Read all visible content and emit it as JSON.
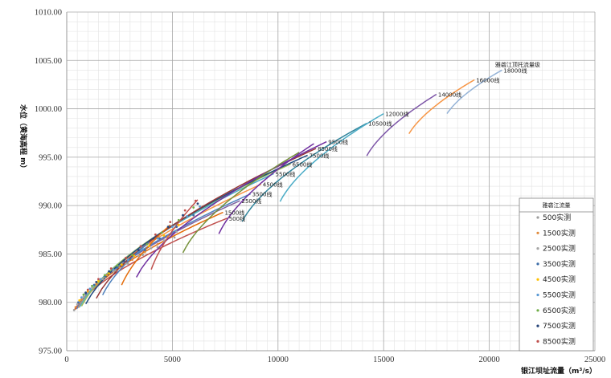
{
  "chart_data": {
    "type": "line",
    "xlabel": "银江坝址流量（m³/s）",
    "ylabel": "水位（黄海高程 m）",
    "xlim": [
      0,
      25000
    ],
    "ylim": [
      975,
      1010
    ],
    "x_ticks": [
      "0",
      "5000",
      "10000",
      "15000",
      "20000",
      "25000"
    ],
    "y_ticks": [
      "975.00",
      "980.00",
      "985.00",
      "990.00",
      "995.00",
      "1000.00",
      "1005.00",
      "1010.00"
    ],
    "grid": true,
    "legend": {
      "title": "雅砻江流量",
      "position": "right",
      "entries": [
        {
          "name": "500实测",
          "color": "#9e9e9e"
        },
        {
          "name": "1500实测",
          "color": "#e08a3c"
        },
        {
          "name": "2500实测",
          "color": "#a5a5a5"
        },
        {
          "name": "3500实测",
          "color": "#3d6da8"
        },
        {
          "name": "4500实测",
          "color": "#ffc000"
        },
        {
          "name": "5500实测",
          "color": "#5b9bd5"
        },
        {
          "name": "6500实测",
          "color": "#70ad47"
        },
        {
          "name": "7500实测",
          "color": "#264478"
        },
        {
          "name": "8500实测",
          "color": "#c0504d"
        }
      ]
    },
    "annotation": {
      "text": "雅砻江顶托流量级",
      "x": 21800,
      "y": 1004.6
    },
    "series": [
      {
        "name": "500线",
        "label": "500线",
        "color": "#c0504d",
        "x_start": 350,
        "x_end": 7600,
        "y_end": 988.7
      },
      {
        "name": "1500线",
        "label": "1500线",
        "color": "#e46c0a",
        "x_start": 400,
        "x_end": 7400,
        "y_end": 989.3
      },
      {
        "name": "2500线",
        "label": "2500线",
        "color": "#8064a2",
        "x_start": 450,
        "x_end": 8200,
        "y_end": 990.5
      },
      {
        "name": "3500线",
        "label": "3500线",
        "color": "#4f81bd",
        "x_start": 500,
        "x_end": 8700,
        "y_end": 991.2
      },
      {
        "name": "4500线",
        "label": "4500线",
        "color": "#f79646",
        "x_start": 550,
        "x_end": 9200,
        "y_end": 992.2
      },
      {
        "name": "5500线",
        "label": "5500线",
        "color": "#4bacc6",
        "x_start": 600,
        "x_end": 9800,
        "y_end": 993.3
      },
      {
        "name": "6500线",
        "label": "6500线",
        "color": "#9bbb59",
        "x_start": 700,
        "x_end": 10600,
        "y_end": 994.3
      },
      {
        "name": "7500线",
        "label": "7500线",
        "color": "#1f497d",
        "x_start": 900,
        "x_end": 11400,
        "y_end": 995.2
      },
      {
        "name": "8500线",
        "label": "8500线",
        "color": "#953735",
        "x_start": 1400,
        "x_end": 11800,
        "y_end": 995.9
      },
      {
        "name": "9500线",
        "label": "9500线",
        "color": "#7030a0",
        "x_start": 3300,
        "x_end": 12300,
        "y_end": 996.6
      },
      {
        "name": "10500线",
        "label": "10500线",
        "color": "#31859c",
        "x_start": 8300,
        "x_end": 14200,
        "y_end": 998.5
      },
      {
        "name": "12000线",
        "label": "12000线",
        "color": "#4bacc6",
        "x_start": 10100,
        "x_end": 15000,
        "y_end": 999.5
      },
      {
        "name": "14000线",
        "label": "14000线",
        "color": "#7e57a8",
        "x_start": 14200,
        "x_end": 17500,
        "y_end": 1001.5
      },
      {
        "name": "16000线",
        "label": "16000线",
        "color": "#f79646",
        "x_start": 16200,
        "x_end": 19300,
        "y_end": 1003.0
      },
      {
        "name": "18000线",
        "label": "18000线",
        "color": "#95b3d7",
        "x_start": 18000,
        "x_end": 20600,
        "y_end": 1004.0
      },
      {
        "name": "",
        "label": "",
        "color": "#76923c",
        "x_start": 5500,
        "x_end": 11000,
        "y_end": 995.5
      },
      {
        "name": "",
        "label": "",
        "color": "#c0504d",
        "x_start": 4000,
        "x_end": 6200,
        "y_end": 990.6
      },
      {
        "name": "",
        "label": "",
        "color": "#e46c0a",
        "x_start": 2600,
        "x_end": 4900,
        "y_end": 988.0
      },
      {
        "name": "",
        "label": "",
        "color": "#4f81bd",
        "x_start": 1700,
        "x_end": 3900,
        "y_end": 986.2
      },
      {
        "name": "",
        "label": "",
        "color": "#7030a0",
        "x_start": 7200,
        "x_end": 11700,
        "y_end": 996.4
      }
    ],
    "scatter": [
      {
        "name": "500实测",
        "color": "#9e9e9e",
        "points": [
          [
            350,
            979.2
          ],
          [
            600,
            980.0
          ],
          [
            900,
            980.9
          ],
          [
            1300,
            981.8
          ],
          [
            1800,
            982.6
          ],
          [
            2300,
            983.3
          ],
          [
            2900,
            984.0
          ],
          [
            3600,
            984.9
          ],
          [
            4300,
            985.7
          ],
          [
            5100,
            986.7
          ]
        ]
      },
      {
        "name": "1500实测",
        "color": "#e08a3c",
        "points": [
          [
            420,
            979.5
          ],
          [
            700,
            980.3
          ],
          [
            1000,
            981.1
          ],
          [
            1400,
            981.9
          ],
          [
            1900,
            982.8
          ],
          [
            2500,
            983.6
          ],
          [
            3100,
            984.4
          ],
          [
            3700,
            985.2
          ],
          [
            4300,
            986.0
          ],
          [
            4800,
            986.8
          ]
        ]
      },
      {
        "name": "2500实测",
        "color": "#a5a5a5",
        "points": [
          [
            500,
            979.8
          ],
          [
            800,
            980.6
          ],
          [
            1200,
            981.5
          ],
          [
            1700,
            982.4
          ],
          [
            2200,
            983.2
          ],
          [
            2800,
            984.0
          ],
          [
            3400,
            984.8
          ],
          [
            4000,
            985.6
          ],
          [
            4600,
            986.4
          ],
          [
            5200,
            987.3
          ]
        ]
      },
      {
        "name": "3500实测",
        "color": "#3d6da8",
        "points": [
          [
            550,
            980.0
          ],
          [
            900,
            980.9
          ],
          [
            1300,
            981.8
          ],
          [
            1800,
            982.7
          ],
          [
            2400,
            983.6
          ],
          [
            3000,
            984.5
          ],
          [
            3700,
            985.4
          ],
          [
            4400,
            986.6
          ],
          [
            5200,
            987.8
          ],
          [
            6000,
            989.0
          ]
        ]
      },
      {
        "name": "4500实测",
        "color": "#ffc000",
        "points": [
          [
            600,
            980.2
          ],
          [
            1000,
            981.2
          ],
          [
            1500,
            982.2
          ],
          [
            2000,
            983.0
          ],
          [
            2600,
            983.9
          ],
          [
            3200,
            984.8
          ],
          [
            3900,
            985.8
          ],
          [
            4600,
            986.9
          ],
          [
            5300,
            988.0
          ]
        ]
      },
      {
        "name": "5500实测",
        "color": "#5b9bd5",
        "points": [
          [
            700,
            980.5
          ],
          [
            1100,
            981.4
          ],
          [
            1600,
            982.4
          ],
          [
            2200,
            983.4
          ],
          [
            2900,
            984.4
          ],
          [
            3600,
            985.5
          ],
          [
            4300,
            986.6
          ],
          [
            5000,
            987.8
          ],
          [
            5700,
            988.9
          ],
          [
            6300,
            989.9
          ]
        ]
      },
      {
        "name": "6500实测",
        "color": "#70ad47",
        "points": [
          [
            800,
            980.8
          ],
          [
            1200,
            981.7
          ],
          [
            1800,
            982.8
          ],
          [
            2400,
            983.8
          ],
          [
            3100,
            984.9
          ],
          [
            3800,
            986.0
          ],
          [
            4500,
            987.2
          ],
          [
            5300,
            988.5
          ],
          [
            6000,
            989.8
          ]
        ]
      },
      {
        "name": "7500实测",
        "color": "#264478",
        "points": [
          [
            900,
            981.0
          ],
          [
            1400,
            982.1
          ],
          [
            2000,
            983.2
          ],
          [
            2700,
            984.3
          ],
          [
            3400,
            985.4
          ],
          [
            4100,
            986.6
          ],
          [
            4800,
            987.8
          ],
          [
            5500,
            989.0
          ],
          [
            6200,
            990.2
          ]
        ]
      },
      {
        "name": "8500实测",
        "color": "#c0504d",
        "points": [
          [
            1000,
            981.3
          ],
          [
            1500,
            982.4
          ],
          [
            2100,
            983.5
          ],
          [
            2800,
            984.6
          ],
          [
            3500,
            985.8
          ],
          [
            4200,
            987.0
          ],
          [
            4900,
            988.3
          ],
          [
            5600,
            989.5
          ],
          [
            6100,
            990.5
          ]
        ]
      }
    ]
  }
}
